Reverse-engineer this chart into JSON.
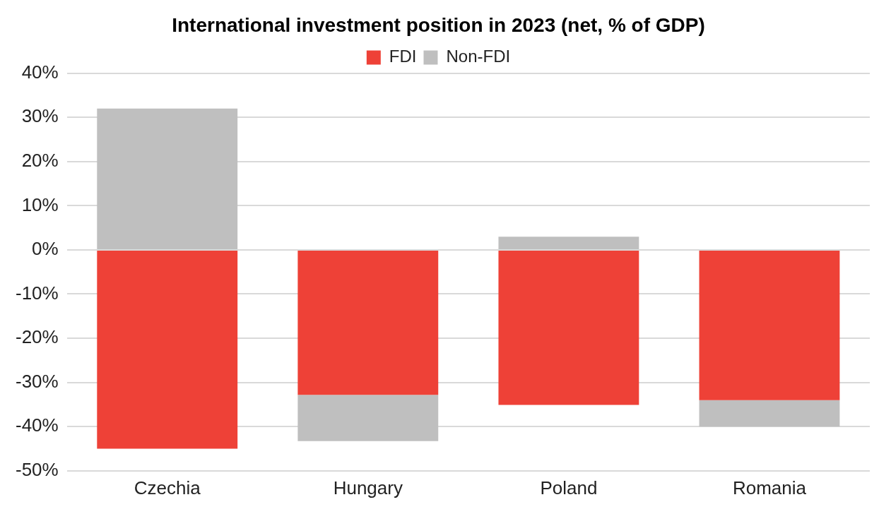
{
  "chart_data": {
    "type": "bar",
    "title": "International investment position in 2023 (net, % of GDP)",
    "categories": [
      "Czechia",
      "Hungary",
      "Poland",
      "Romania"
    ],
    "stacked": true,
    "series": [
      {
        "name": "FDI",
        "color": "#ee4137",
        "values": [
          -45,
          -32.8,
          -35.1,
          -34
        ]
      },
      {
        "name": "Non-FDI",
        "color": "#bfbfbf",
        "values": [
          32,
          -10.5,
          3,
          -6
        ]
      }
    ],
    "ylim": [
      -50,
      40
    ],
    "yticks": [
      {
        "value": -50,
        "label": "-50%"
      },
      {
        "value": -40,
        "label": "-40%"
      },
      {
        "value": -30,
        "label": "-30%"
      },
      {
        "value": -20,
        "label": "-20%"
      },
      {
        "value": -10,
        "label": "-10%"
      },
      {
        "value": 0,
        "label": "0%"
      },
      {
        "value": 10,
        "label": "10%"
      },
      {
        "value": 20,
        "label": "20%"
      },
      {
        "value": 30,
        "label": "30%"
      },
      {
        "value": 40,
        "label": "40%"
      }
    ],
    "grid": "y",
    "legend": "top"
  }
}
